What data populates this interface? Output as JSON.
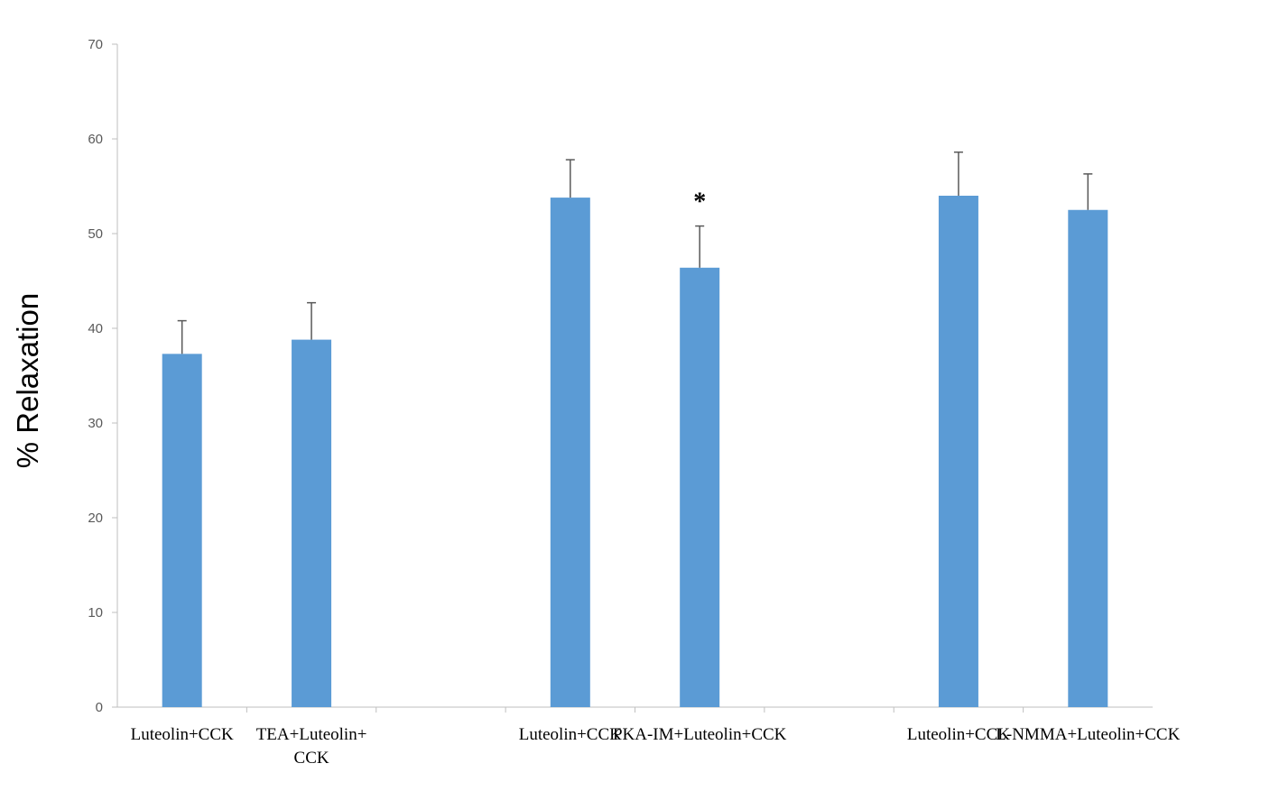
{
  "chart_data": {
    "type": "bar",
    "title": "",
    "xlabel": "",
    "ylabel": "% Relaxation",
    "ylim": [
      0,
      70
    ],
    "yticks": [
      0,
      10,
      20,
      30,
      40,
      50,
      60,
      70
    ],
    "grid": false,
    "legend": "none",
    "bar_color": "#5B9BD5",
    "categories": [
      [
        "Luteolin+CCK"
      ],
      [
        "TEA+Luteolin+",
        "CCK"
      ],
      [
        ""
      ],
      [
        "Luteolin+CCK"
      ],
      [
        "PKA-IM+Luteolin+CCK"
      ],
      [
        ""
      ],
      [
        "Luteolin+CCK"
      ],
      [
        "L-NMMA+Luteolin+CCK"
      ]
    ],
    "values": [
      37.3,
      38.8,
      null,
      53.8,
      46.4,
      null,
      54.0,
      52.5
    ],
    "error_upper": [
      3.5,
      3.9,
      null,
      4.0,
      4.4,
      null,
      4.6,
      3.8
    ],
    "annotations": [
      {
        "text": "*",
        "category_index": 4
      }
    ]
  }
}
